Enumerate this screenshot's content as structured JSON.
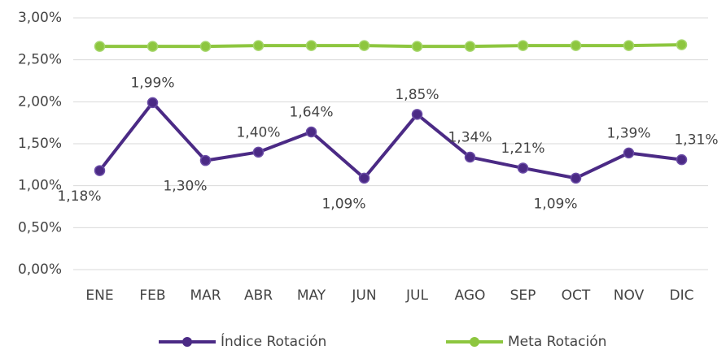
{
  "chart_data": {
    "type": "line",
    "categories": [
      "ENE",
      "FEB",
      "MAR",
      "ABR",
      "MAY",
      "JUN",
      "JUL",
      "AGO",
      "SEP",
      "OCT",
      "NOV",
      "DIC"
    ],
    "series": [
      {
        "name": "Índice Rotación",
        "color": "#4b2a85",
        "values": [
          1.18,
          1.99,
          1.3,
          1.4,
          1.64,
          1.09,
          1.85,
          1.34,
          1.21,
          1.09,
          1.39,
          1.31
        ],
        "value_labels": [
          "1,18%",
          "1,99%",
          "1,30%",
          "1,40%",
          "1,64%",
          "1,09%",
          "1,85%",
          "1,34%",
          "1,21%",
          "1,09%",
          "1,39%",
          "1,31%"
        ]
      },
      {
        "name": "Meta Rotación",
        "color": "#8dc63f",
        "values": [
          2.66,
          2.66,
          2.66,
          2.67,
          2.67,
          2.67,
          2.66,
          2.66,
          2.67,
          2.67,
          2.67,
          2.68
        ]
      }
    ],
    "ylim": [
      0,
      3
    ],
    "yticks": [
      {
        "value": 0,
        "label": "0,00%"
      },
      {
        "value": 0.5,
        "label": "0,50%"
      },
      {
        "value": 1,
        "label": "1,00%"
      },
      {
        "value": 1.5,
        "label": "1,50%"
      },
      {
        "value": 2,
        "label": "2,00%"
      },
      {
        "value": 2.5,
        "label": "2,50%"
      },
      {
        "value": 3,
        "label": "3,00%"
      }
    ],
    "grid": true,
    "legend": "bottom"
  }
}
